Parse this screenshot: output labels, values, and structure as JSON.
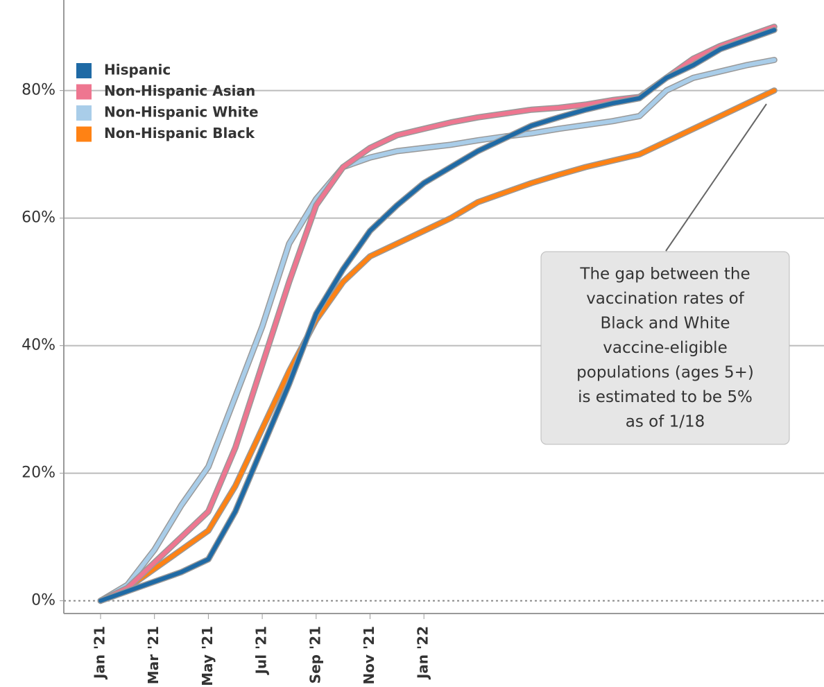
{
  "chart_data": {
    "type": "line",
    "categories": [
      "Jan '21",
      null,
      "Mar '21",
      null,
      "May '21",
      null,
      "Jul '21",
      null,
      "Sep '21",
      null,
      "Nov '21",
      null,
      "Jan '22",
      null,
      null,
      null,
      null,
      null,
      null,
      null,
      null,
      null,
      null,
      null,
      null,
      null
    ],
    "series": [
      {
        "name": "Hispanic",
        "color": "#1f6aa5",
        "values": [
          0,
          1.5,
          3,
          4.5,
          6.5,
          14,
          24,
          34,
          45,
          52,
          58,
          62,
          65.5,
          68,
          70.5,
          72.5,
          74.5,
          75.8,
          77,
          78,
          78.8,
          82,
          84,
          86.5,
          88,
          89.5
        ]
      },
      {
        "name": "Non-Hispanic Asian",
        "color": "#ee7690",
        "values": [
          0,
          2,
          6,
          10,
          14,
          24,
          37,
          50,
          62,
          68,
          71,
          73,
          74,
          75,
          75.8,
          76.4,
          77,
          77.3,
          77.8,
          78.5,
          79,
          82,
          85,
          87,
          88.5,
          90
        ]
      },
      {
        "name": "Non-Hispanic White",
        "color": "#a9cde9",
        "values": [
          0,
          2.5,
          8,
          15,
          21,
          32,
          43,
          56,
          63,
          68,
          69.5,
          70.5,
          71,
          71.5,
          72.2,
          72.8,
          73.3,
          74,
          74.6,
          75.2,
          76,
          80,
          82,
          83,
          84,
          84.8
        ]
      },
      {
        "name": "Non-Hispanic Black",
        "color": "#ff8214",
        "values": [
          0,
          2,
          5,
          8,
          11,
          18,
          27,
          36,
          44,
          50,
          54,
          56,
          58,
          60,
          62.5,
          64,
          65.5,
          66.8,
          68,
          69,
          70,
          72,
          74,
          76,
          78,
          80
        ]
      }
    ],
    "ylim": [
      -2,
      94.2
    ],
    "yticks": [
      {
        "value": 0,
        "label": "0%"
      },
      {
        "value": 20,
        "label": "20%"
      },
      {
        "value": 40,
        "label": "40%"
      },
      {
        "value": 60,
        "label": "60%"
      },
      {
        "value": 80,
        "label": "80%"
      }
    ],
    "grid": true,
    "legend": "top-left",
    "annotation": [
      "The gap between the",
      "vaccination rates of",
      "Black and White",
      "vaccine-eligible",
      "populations (ages 5+)",
      "is estimated to be 5%",
      "as of 1/18"
    ]
  }
}
